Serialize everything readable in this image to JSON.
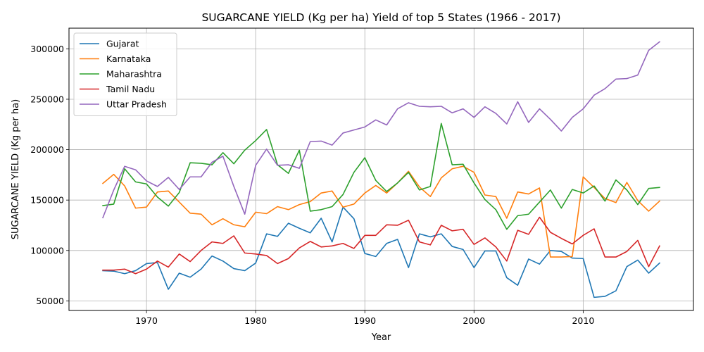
{
  "chart_data": {
    "type": "line",
    "title": "SUGARCANE YIELD (Kg per ha) Yield of top 5 States (1966 - 2017)",
    "xlabel": "Year",
    "ylabel": "SUGARCANE YIELD (Kg per ha)",
    "xlim": [
      1962.9,
      2020.1
    ],
    "ylim": [
      40500,
      320500
    ],
    "x_ticks": [
      1970,
      1980,
      1990,
      2000,
      2010
    ],
    "y_ticks": [
      50000,
      100000,
      150000,
      200000,
      250000,
      300000
    ],
    "x_tick_labels": [
      "1970",
      "1980",
      "1990",
      "2000",
      "2010"
    ],
    "y_tick_labels": [
      "50000",
      "100000",
      "150000",
      "200000",
      "250000",
      "300000"
    ],
    "grid": true,
    "legend_position": "upper-left",
    "x": [
      1966,
      1967,
      1968,
      1969,
      1970,
      1971,
      1972,
      1973,
      1974,
      1975,
      1976,
      1977,
      1978,
      1979,
      1980,
      1981,
      1982,
      1983,
      1984,
      1985,
      1986,
      1987,
      1988,
      1989,
      1990,
      1991,
      1992,
      1993,
      1994,
      1995,
      1996,
      1997,
      1998,
      1999,
      2000,
      2001,
      2002,
      2003,
      2004,
      2005,
      2006,
      2007,
      2008,
      2009,
      2010,
      2011,
      2012,
      2013,
      2014,
      2015,
      2016,
      2017
    ],
    "series": [
      {
        "name": "Gujarat",
        "color": "#1f77b4",
        "values": [
          80000,
          79500,
          77000,
          80000,
          87000,
          88000,
          61500,
          77500,
          73500,
          81500,
          94500,
          89500,
          82000,
          80000,
          87500,
          116500,
          114000,
          127000,
          122000,
          117500,
          132000,
          108500,
          143000,
          131500,
          97000,
          94000,
          107000,
          111000,
          83000,
          116500,
          113500,
          116500,
          104000,
          101000,
          83000,
          99500,
          99500,
          73000,
          65500,
          91500,
          86500,
          100000,
          99000,
          92500,
          92000,
          53500,
          54500,
          60000,
          84000,
          90500,
          77500,
          87500
        ]
      },
      {
        "name": "Karnataka",
        "color": "#ff7f0e",
        "values": [
          166500,
          175500,
          164000,
          142000,
          143000,
          158000,
          159000,
          148000,
          137000,
          136000,
          125500,
          131500,
          125500,
          123500,
          138000,
          136500,
          143500,
          140500,
          145500,
          148500,
          157000,
          159000,
          143000,
          146000,
          157000,
          164500,
          157000,
          167000,
          178500,
          163000,
          153500,
          172000,
          181000,
          183500,
          177500,
          155000,
          153500,
          132000,
          158000,
          156000,
          162000,
          93500,
          93500,
          94000,
          173000,
          162500,
          151500,
          147500,
          167500,
          149500,
          139000,
          149000
        ]
      },
      {
        "name": "Maharashtra",
        "color": "#2ca02c",
        "values": [
          144500,
          146000,
          181000,
          168000,
          166000,
          153000,
          144000,
          157500,
          187000,
          186500,
          185000,
          197000,
          186000,
          199500,
          209000,
          220000,
          185000,
          176500,
          199500,
          139000,
          140500,
          143500,
          155500,
          177500,
          192000,
          169500,
          158500,
          167000,
          177500,
          160000,
          163500,
          226000,
          185000,
          185500,
          167000,
          150500,
          140500,
          121000,
          134500,
          136000,
          148000,
          160000,
          142000,
          160500,
          157000,
          164000,
          149000,
          170000,
          160000,
          145500,
          161500,
          162500
        ]
      },
      {
        "name": "Tamil Nadu",
        "color": "#d62728",
        "values": [
          80500,
          80500,
          81500,
          77000,
          81500,
          89500,
          83500,
          96500,
          89000,
          100000,
          108500,
          107000,
          114500,
          97500,
          96500,
          95000,
          87000,
          92000,
          102500,
          109000,
          103500,
          104500,
          107000,
          102000,
          115000,
          115000,
          125500,
          125000,
          130000,
          108500,
          105500,
          125000,
          119500,
          121000,
          106000,
          112500,
          103500,
          89500,
          120000,
          116000,
          133000,
          118000,
          112000,
          106500,
          115000,
          121500,
          93500,
          93500,
          99000,
          110000,
          84000,
          104500
        ]
      },
      {
        "name": "Uttar Pradesh",
        "color": "#9467bd",
        "values": [
          132500,
          160000,
          183500,
          180000,
          169000,
          163500,
          172500,
          160500,
          173000,
          173000,
          187500,
          193500,
          163500,
          136000,
          184500,
          200500,
          184500,
          185000,
          181500,
          208000,
          208500,
          204500,
          216500,
          219500,
          222500,
          229500,
          224500,
          240500,
          246500,
          243000,
          242500,
          243000,
          236500,
          240500,
          232000,
          242500,
          236000,
          225500,
          247500,
          227000,
          240500,
          230000,
          218500,
          232000,
          240500,
          254000,
          260500,
          270000,
          270500,
          274000,
          298500,
          307000
        ]
      }
    ]
  }
}
